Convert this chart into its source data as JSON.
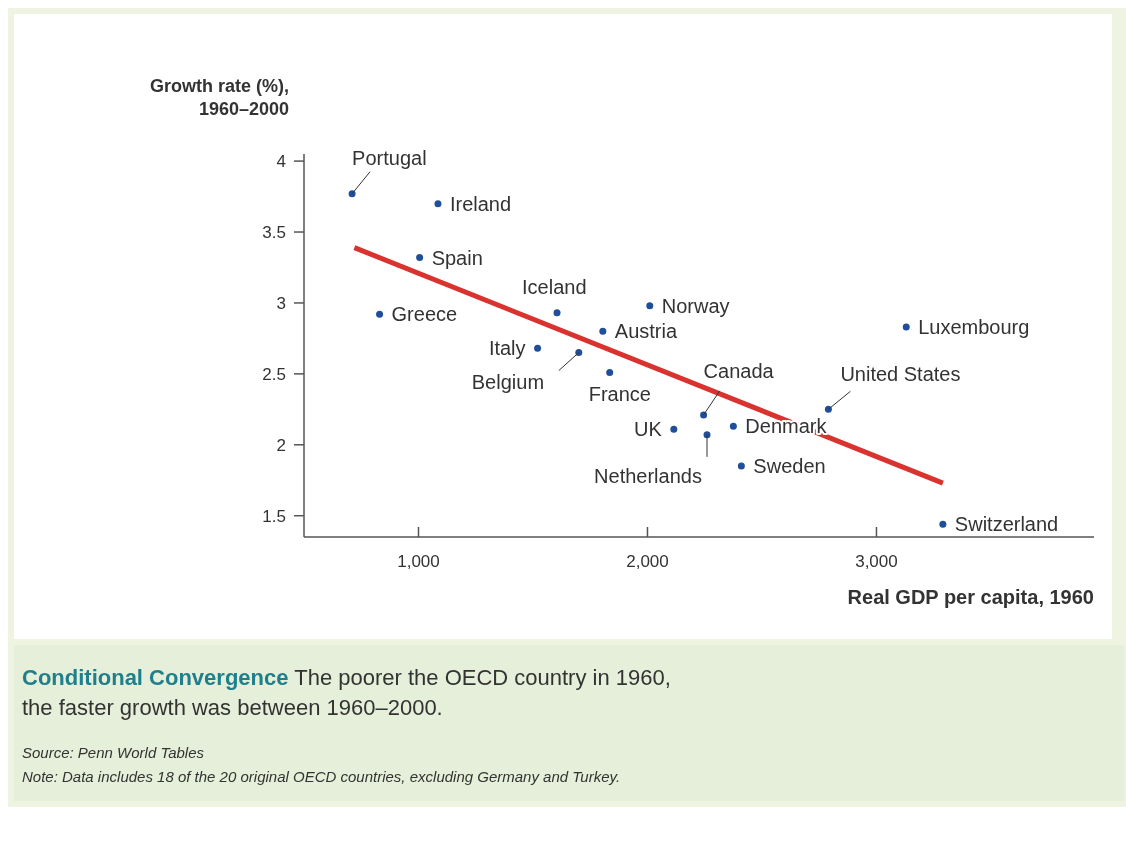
{
  "chart_data": {
    "type": "scatter",
    "title": "Conditional Convergence",
    "subtitle": "The poorer the OECD country in 1960, the faster growth was between 1960–2000.",
    "xlabel": "Real GDP per capita, 1960",
    "ylabel": "Growth rate (%),\n1960–2000",
    "xlim": [
      500,
      3950
    ],
    "ylim": [
      1.35,
      4.05
    ],
    "xticks": [
      {
        "value": 1000,
        "label": "1,000"
      },
      {
        "value": 2000,
        "label": "2,000"
      },
      {
        "value": 3000,
        "label": "3,000"
      }
    ],
    "yticks": [
      1.5,
      2,
      2.5,
      3,
      3.5,
      4
    ],
    "grid": false,
    "marker": "circle",
    "x": [
      710,
      1085,
      1005,
      830,
      1605,
      2010,
      1805,
      1520,
      1700,
      1835,
      2245,
      2790,
      3130,
      2115,
      2375,
      2260,
      2410,
      3290
    ],
    "series": [
      {
        "color": "#1f4e9a",
        "values": [
          3.77,
          3.7,
          3.32,
          2.92,
          2.93,
          2.98,
          2.8,
          2.68,
          2.65,
          2.51,
          2.21,
          2.25,
          2.83,
          2.11,
          2.13,
          2.07,
          1.85,
          1.44
        ]
      },
      {
        "type": "line",
        "color": "#d9322f",
        "line_style": "solid",
        "marker": "none",
        "x": [
          720,
          3290
        ],
        "values": [
          3.39,
          1.73
        ]
      }
    ],
    "annotations": [
      {
        "text": "Portugal",
        "x": 710,
        "y": 3.77
      },
      {
        "text": "Ireland",
        "x": 1085,
        "y": 3.7
      },
      {
        "text": "Spain",
        "x": 1005,
        "y": 3.32
      },
      {
        "text": "Greece",
        "x": 830,
        "y": 2.92
      },
      {
        "text": "Iceland",
        "x": 1605,
        "y": 2.93
      },
      {
        "text": "Norway",
        "x": 2010,
        "y": 2.98
      },
      {
        "text": "Austria",
        "x": 1805,
        "y": 2.8
      },
      {
        "text": "Italy",
        "x": 1520,
        "y": 2.68
      },
      {
        "text": "Belgium",
        "x": 1700,
        "y": 2.65
      },
      {
        "text": "France",
        "x": 1835,
        "y": 2.51
      },
      {
        "text": "Canada",
        "x": 2245,
        "y": 2.21
      },
      {
        "text": "United States",
        "x": 2790,
        "y": 2.25
      },
      {
        "text": "Luxembourg",
        "x": 3130,
        "y": 2.83
      },
      {
        "text": "UK",
        "x": 2115,
        "y": 2.11
      },
      {
        "text": "Denmark",
        "x": 2375,
        "y": 2.13
      },
      {
        "text": "Netherlands",
        "x": 2260,
        "y": 2.07
      },
      {
        "text": "Sweden",
        "x": 2410,
        "y": 1.85
      },
      {
        "text": "Switzerland",
        "x": 3290,
        "y": 1.44
      },
      "Source: Penn World Tables",
      "Note: Data includes 18 of the 20 original OECD countries, excluding Germany and Turkey."
    ]
  }
}
